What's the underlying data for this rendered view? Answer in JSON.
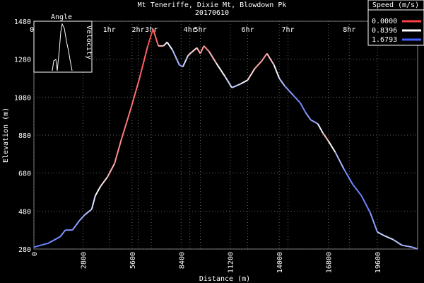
{
  "chart_data": {
    "type": "line",
    "title": "Mt Teneriffe, Dixie Mt, Blowdown Pk",
    "subtitle": "20170610",
    "xlabel": "Distance (m)",
    "ylabel": "Elevation (m)",
    "xlim": [
      0,
      21900
    ],
    "ylim": [
      280,
      1480
    ],
    "x_ticks": [
      "0",
      "2800",
      "5600",
      "8400",
      "11200",
      "14000",
      "16800",
      "19600"
    ],
    "y_ticks": [
      "280",
      "480",
      "680",
      "880",
      "1080",
      "1280",
      "1480"
    ],
    "time_ticks": [
      {
        "label": "0h",
        "x": 0
      },
      {
        "label": "1hr",
        "x": 4300
      },
      {
        "label": "2hr",
        "x": 5950
      },
      {
        "label": "3hr",
        "x": 6700
      },
      {
        "label": "4hr",
        "x": 8900
      },
      {
        "label": "5hr",
        "x": 9500
      },
      {
        "label": "6hr",
        "x": 12200
      },
      {
        "label": "7hr",
        "x": 14500
      },
      {
        "label": "8hr",
        "x": 18000
      }
    ],
    "legend": {
      "title": "Speed (m/s)",
      "entries": [
        {
          "label": "0.0000",
          "color": "#ff4040"
        },
        {
          "label": "0.8396",
          "color": "#ffffff"
        },
        {
          "label": "1.6793",
          "color": "#4060ff"
        }
      ],
      "placement": "top-right"
    },
    "inset": {
      "title": "Angle",
      "ylabel": "Velocity"
    },
    "series": [
      {
        "points": [
          [
            0,
            290,
            1.5
          ],
          [
            800,
            310,
            1.5
          ],
          [
            1500,
            345,
            1.4
          ],
          [
            1800,
            380,
            1.4
          ],
          [
            2200,
            380,
            1.4
          ],
          [
            2600,
            430,
            1.3
          ],
          [
            2900,
            460,
            1.2
          ],
          [
            3300,
            490,
            1.1
          ],
          [
            3500,
            560,
            0.9
          ],
          [
            3800,
            610,
            0.8
          ],
          [
            4200,
            660,
            0.6
          ],
          [
            4600,
            730,
            0.4
          ],
          [
            5000,
            860,
            0.3
          ],
          [
            5500,
            1010,
            0.2
          ],
          [
            6000,
            1170,
            0.2
          ],
          [
            6500,
            1350,
            0.1
          ],
          [
            6800,
            1440,
            0.0
          ],
          [
            7100,
            1350,
            0.4
          ],
          [
            7400,
            1350,
            0.7
          ],
          [
            7600,
            1370,
            0.8
          ],
          [
            7900,
            1330,
            1.0
          ],
          [
            8300,
            1250,
            1.4
          ],
          [
            8500,
            1240,
            1.3
          ],
          [
            8800,
            1300,
            0.8
          ],
          [
            9300,
            1340,
            0.5
          ],
          [
            9500,
            1310,
            0.5
          ],
          [
            9700,
            1350,
            0.3
          ],
          [
            10000,
            1320,
            0.4
          ],
          [
            10400,
            1260,
            0.7
          ],
          [
            10900,
            1190,
            0.9
          ],
          [
            11300,
            1130,
            1.2
          ],
          [
            11800,
            1150,
            1.0
          ],
          [
            12200,
            1170,
            0.8
          ],
          [
            12600,
            1230,
            0.5
          ],
          [
            13000,
            1270,
            0.4
          ],
          [
            13300,
            1310,
            0.4
          ],
          [
            13700,
            1250,
            0.8
          ],
          [
            14000,
            1180,
            1.0
          ],
          [
            14300,
            1140,
            1.3
          ],
          [
            14800,
            1090,
            1.4
          ],
          [
            15200,
            1050,
            1.5
          ],
          [
            15500,
            1000,
            1.4
          ],
          [
            15800,
            960,
            1.3
          ],
          [
            16200,
            940,
            1.3
          ],
          [
            16500,
            890,
            0.5
          ],
          [
            16800,
            850,
            0.6
          ],
          [
            17200,
            790,
            1.0
          ],
          [
            17700,
            700,
            1.4
          ],
          [
            18200,
            620,
            1.5
          ],
          [
            18700,
            560,
            1.5
          ],
          [
            19200,
            470,
            1.5
          ],
          [
            19600,
            370,
            1.2
          ],
          [
            20000,
            350,
            1.0
          ],
          [
            20500,
            330,
            1.1
          ],
          [
            21000,
            300,
            1.2
          ],
          [
            21600,
            290,
            1.3
          ],
          [
            21900,
            280,
            1.4
          ]
        ]
      }
    ]
  }
}
